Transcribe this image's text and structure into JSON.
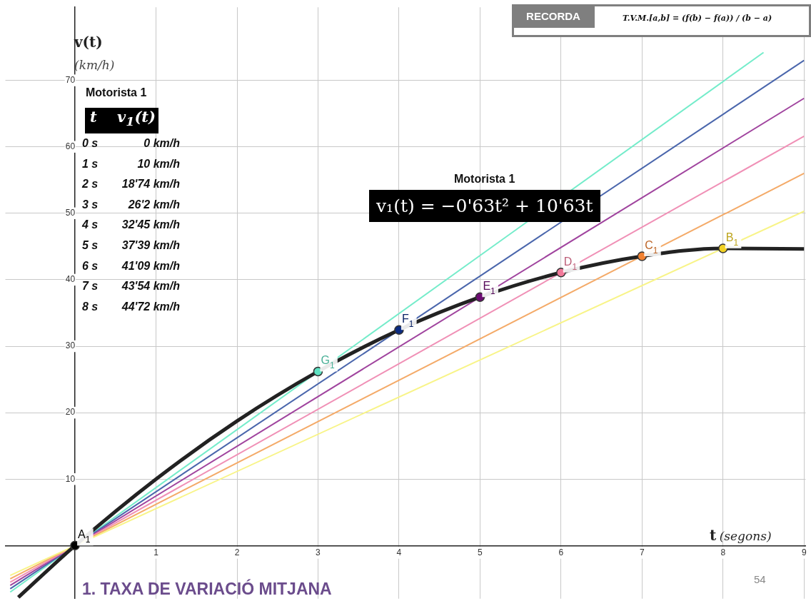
{
  "chart_data": {
    "type": "line",
    "title": "1. TAXA DE VARIACIÓ MITJANA",
    "xlabel": "t (segons)",
    "ylabel": "v(t) (km/h)",
    "xlim": [
      -0.86,
      9.02
    ],
    "ylim": [
      -8,
      81
    ],
    "xticks": [
      1,
      2,
      3,
      4,
      5,
      6,
      7,
      8,
      9
    ],
    "yticks": [
      10,
      20,
      30,
      40,
      50,
      60,
      70
    ],
    "grid": true,
    "legend": false,
    "series": [
      {
        "color": "#74ecca",
        "x": [
          -0.8,
          8.5
        ],
        "values": [
          -7.0,
          74.2
        ],
        "marker": "none"
      },
      {
        "color": "#4a66ac",
        "x": [
          -0.8,
          9
        ],
        "values": [
          -6.5,
          73.0
        ],
        "marker": "none"
      },
      {
        "color": "#a0449e",
        "x": [
          -0.8,
          9
        ],
        "values": [
          -6.0,
          67.3
        ],
        "marker": "none"
      },
      {
        "color": "#f090b6",
        "x": [
          -0.8,
          9
        ],
        "values": [
          -5.5,
          61.6
        ],
        "marker": "none"
      },
      {
        "color": "#f4aa68",
        "x": [
          -0.8,
          9
        ],
        "values": [
          -5.0,
          56.0
        ],
        "marker": "none"
      },
      {
        "color": "#f8f488",
        "x": [
          -0.8,
          9
        ],
        "values": [
          -4.5,
          50.3
        ],
        "marker": "none"
      },
      {
        "color": "#222222",
        "x": [
          -0.7,
          0,
          1,
          2,
          3,
          4,
          5,
          6,
          7,
          8,
          9
        ],
        "values": [
          -7.8,
          0,
          10,
          18.74,
          26.2,
          32.45,
          37.39,
          41.09,
          43.54,
          44.72,
          44.64
        ],
        "marker": "none"
      },
      {
        "type": "scatter",
        "color": "#000000",
        "colors": [
          "#000000",
          "#5ee2c2",
          "#0c2c82",
          "#6c0c72",
          "#f27a9a",
          "#f28232",
          "#f2d224"
        ],
        "x": [
          0,
          3,
          4,
          5,
          6,
          7,
          8
        ],
        "values": [
          0,
          26.2,
          32.45,
          37.39,
          41.09,
          43.54,
          44.72
        ],
        "marker": "circle"
      }
    ],
    "annotations": [
      "RECORDA",
      "T.V.M.[a,b] = (f(b) − f(a)) / (b − a)",
      "Motorista 1",
      "t",
      "v$_{1}$(t)",
      "0 s",
      "0 km/h",
      "1 s",
      "10 km/h",
      "2 s",
      "18'74 km/h",
      "3 s",
      "26'2 km/h",
      "4 s",
      "32'45 km/h",
      "5 s",
      "37'39 km/h",
      "6 s",
      "41'09 km/h",
      "7 s",
      "43'54 km/h",
      "8 s",
      "44'72 km/h",
      "Motorista 1",
      "v₁(t) = −0'63t² + 10'63t",
      "54",
      {
        "text": "A$_{1}$",
        "x": 0,
        "y": 0
      },
      {
        "text": "G$_{1}$",
        "x": 3,
        "y": 26.2
      },
      {
        "text": "F$_{1}$",
        "x": 4,
        "y": 32.45
      },
      {
        "text": "E$_{1}$",
        "x": 5,
        "y": 37.39
      },
      {
        "text": "D$_{1}$",
        "x": 6,
        "y": 41.09
      },
      {
        "text": "C$_{1}$",
        "x": 7,
        "y": 43.54
      },
      {
        "text": "B$_{1}$",
        "x": 8,
        "y": 44.72
      }
    ]
  }
}
